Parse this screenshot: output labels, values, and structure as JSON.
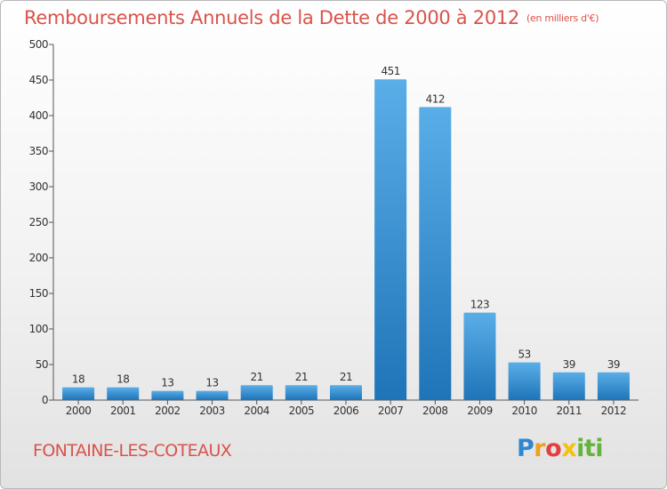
{
  "title": "Remboursements Annuels de la Dette de 2000 à 2012",
  "subtitle": "(en milliers d'€)",
  "commune": "FONTAINE-LES-COTEAUX",
  "logo": {
    "p": "P",
    "r": "r",
    "o": "o",
    "x": "x",
    "i": "iti"
  },
  "colors": {
    "title": "#d9534a",
    "bar_light": "#5aaee8",
    "bar_dark": "#1f74b8",
    "axis": "#555555"
  },
  "chart_data": {
    "type": "bar",
    "title": "Remboursements Annuels de la Dette de 2000 à 2012",
    "subtitle": "(en milliers d'€)",
    "categories": [
      "2000",
      "2001",
      "2002",
      "2003",
      "2004",
      "2005",
      "2006",
      "2007",
      "2008",
      "2009",
      "2010",
      "2011",
      "2012"
    ],
    "values": [
      18,
      18,
      13,
      13,
      21,
      21,
      21,
      451,
      412,
      123,
      53,
      39,
      39
    ],
    "value_labels": [
      "18",
      "18",
      "13",
      "13",
      "21",
      "21",
      "21",
      "451",
      "412",
      "123",
      "53",
      "39",
      "39"
    ],
    "ylim": [
      0,
      500
    ],
    "yticks": [
      0,
      50,
      100,
      150,
      200,
      250,
      300,
      350,
      400,
      450,
      500
    ],
    "ytick_labels": [
      "0",
      "50",
      "100",
      "150",
      "200",
      "250",
      "300",
      "350",
      "400",
      "450",
      "500"
    ],
    "grid": false,
    "legend": "none"
  }
}
